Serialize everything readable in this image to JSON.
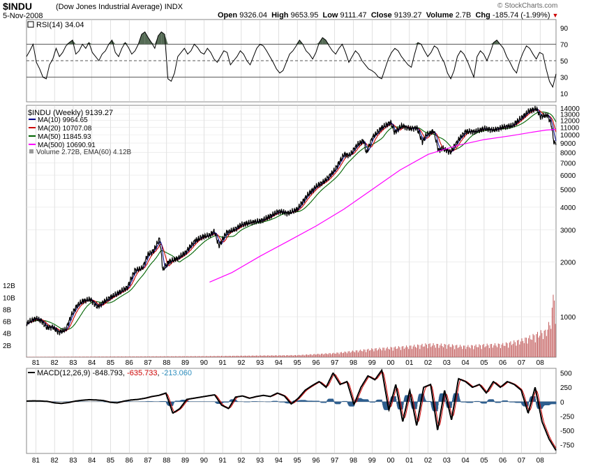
{
  "header": {
    "symbol": "$INDU",
    "name": "(Dow Jones Industrial Average)",
    "exchange": "INDX",
    "date": "5-Nov-2008",
    "open_label": "Open",
    "open": "9326.04",
    "high_label": "High",
    "high": "9653.95",
    "low_label": "Low",
    "low": "9111.47",
    "close_label": "Close",
    "close": "9139.27",
    "volume_label": "Volume",
    "volume": "2.7B",
    "chg_label": "Chg",
    "chg": "-185.74 (-1.99%)",
    "watermark": "© StockCharts.com"
  },
  "colors": {
    "price": "#000000",
    "ma10": "#00008b",
    "ma20": "#cc0000",
    "ma50": "#006400",
    "ma500": "#ff00ff",
    "volume": "#c25a5a",
    "histogram": "#2f5f8f",
    "grid": "#cccccc",
    "rsi_fill": "#556b55"
  },
  "chart_data": [
    {
      "type": "line",
      "title": "RSI(14) 34.04",
      "ylim": [
        0,
        100
      ],
      "yticks": [
        10,
        30,
        50,
        70,
        90
      ],
      "reference_lines": [
        30,
        50,
        70
      ],
      "x_start": 1980.5,
      "x_end": 2008.85,
      "values": [
        55,
        62,
        70,
        48,
        40,
        30,
        28,
        45,
        52,
        65,
        55,
        60,
        68,
        72,
        75,
        58,
        62,
        70,
        65,
        72,
        60,
        55,
        50,
        58,
        62,
        70,
        75,
        60,
        55,
        65,
        72,
        66,
        58,
        62,
        70,
        82,
        85,
        78,
        72,
        65,
        80,
        85,
        82,
        28,
        25,
        35,
        55,
        60,
        65,
        58,
        62,
        70,
        66,
        60,
        58,
        65,
        60,
        52,
        48,
        55,
        62,
        60,
        45,
        50,
        55,
        62,
        58,
        50,
        45,
        55,
        65,
        70,
        68,
        62,
        55,
        48,
        40,
        35,
        38,
        48,
        58,
        62,
        68,
        75,
        70,
        62,
        58,
        52,
        60,
        72,
        78,
        75,
        68,
        62,
        58,
        65,
        70,
        60,
        48,
        55,
        62,
        58,
        50,
        45,
        40,
        38,
        35,
        30,
        28,
        40,
        52,
        60,
        65,
        62,
        55,
        50,
        45,
        42,
        58,
        72,
        70,
        62,
        55,
        60,
        68,
        65,
        55,
        48,
        35,
        28,
        38,
        55,
        62,
        58,
        50,
        40,
        30,
        55,
        62,
        58,
        50,
        60,
        72,
        75,
        70,
        65,
        55,
        48,
        40,
        35,
        50,
        60,
        68,
        65,
        58,
        52,
        60,
        58,
        40,
        25,
        18,
        34.04
      ]
    },
    {
      "type": "line",
      "title": "$INDU (Weekly) 9139.27",
      "scale": "log",
      "ylim": [
        600,
        14500
      ],
      "yticks": [
        1000,
        2000,
        3000,
        4000,
        5000,
        6000,
        7000,
        8000,
        9000,
        10000,
        11000,
        12000,
        13000,
        14000
      ],
      "x_start": 1980.5,
      "x_end": 2008.85,
      "xticks": [
        "81",
        "82",
        "83",
        "84",
        "85",
        "86",
        "87",
        "88",
        "89",
        "90",
        "91",
        "92",
        "93",
        "94",
        "95",
        "96",
        "97",
        "98",
        "99",
        "00",
        "01",
        "02",
        "03",
        "04",
        "05",
        "06",
        "07",
        "08"
      ],
      "xtick_years": [
        1981,
        1982,
        1983,
        1984,
        1985,
        1986,
        1987,
        1988,
        1989,
        1990,
        1991,
        1992,
        1993,
        1994,
        1995,
        1996,
        1997,
        1998,
        1999,
        2000,
        2001,
        2002,
        2003,
        2004,
        2005,
        2006,
        2007,
        2008
      ],
      "price_series": {
        "x": [
          1980.5,
          1980.8,
          1981.0,
          1981.3,
          1981.6,
          1981.9,
          1982.2,
          1982.6,
          1982.9,
          1983.2,
          1983.5,
          1983.9,
          1984.3,
          1984.6,
          1985.0,
          1985.4,
          1985.9,
          1986.3,
          1986.7,
          1987.0,
          1987.3,
          1987.63,
          1987.8,
          1988.1,
          1988.6,
          1989.0,
          1989.5,
          1989.9,
          1990.3,
          1990.55,
          1990.8,
          1991.2,
          1991.6,
          1992.0,
          1992.5,
          1993.0,
          1993.5,
          1994.0,
          1994.5,
          1995.0,
          1995.5,
          1996.0,
          1996.5,
          1997.0,
          1997.5,
          1997.8,
          1998.2,
          1998.55,
          1998.7,
          1999.0,
          1999.5,
          2000.0,
          2000.2,
          2000.6,
          2001.0,
          2001.4,
          2001.7,
          2001.9,
          2002.3,
          2002.55,
          2002.8,
          2003.2,
          2003.6,
          2004.0,
          2004.5,
          2005.0,
          2005.5,
          2006.0,
          2006.5,
          2007.0,
          2007.4,
          2007.8,
          2008.0,
          2008.4,
          2008.6,
          2008.75,
          2008.85
        ],
        "y": [
          920,
          960,
          980,
          950,
          870,
          880,
          820,
          850,
          1020,
          1150,
          1220,
          1250,
          1130,
          1200,
          1280,
          1350,
          1450,
          1800,
          1850,
          2200,
          2300,
          2700,
          1800,
          2000,
          2100,
          2250,
          2600,
          2750,
          2800,
          2950,
          2450,
          2900,
          3000,
          3200,
          3300,
          3350,
          3550,
          3800,
          3700,
          3900,
          4600,
          5200,
          5600,
          6400,
          7800,
          7700,
          8800,
          9300,
          7900,
          9600,
          10900,
          11700,
          10300,
          11200,
          10800,
          10900,
          9100,
          10000,
          10500,
          8200,
          8400,
          8000,
          9300,
          10400,
          10400,
          10800,
          10600,
          11000,
          11200,
          12400,
          13500,
          13900,
          12600,
          12800,
          11400,
          8900,
          9139.27
        ]
      },
      "series": [
        {
          "name": "MA(10)",
          "value": "9964.65"
        },
        {
          "name": "MA(20)",
          "value": "10707.08"
        },
        {
          "name": "MA(50)",
          "value": "11845.93"
        },
        {
          "name": "MA(500)",
          "value": "10690.91"
        }
      ],
      "ma500_series": {
        "x": [
          1990.3,
          1991.5,
          1993.0,
          1994.5,
          1996.0,
          1997.5,
          1999.0,
          2000.5,
          2002.0,
          2003.5,
          2005.0,
          2006.5,
          2007.5,
          2008.3,
          2008.85
        ],
        "y": [
          1550,
          1750,
          2150,
          2600,
          3150,
          3900,
          5000,
          6400,
          7800,
          8700,
          9400,
          9900,
          10300,
          10600,
          10690.91
        ]
      }
    },
    {
      "type": "bar",
      "title": "Volume 2.72B, EMA(60) 4.12B",
      "ylim": [
        0,
        14
      ],
      "yticks_labels": [
        "2B",
        "4B",
        "6B",
        "8B",
        "10B",
        "12B"
      ],
      "yticks": [
        2,
        4,
        6,
        8,
        10,
        12
      ],
      "x": [
        1980.5,
        1985,
        1990,
        1995,
        1997,
        1998,
        1999,
        2000,
        2001,
        2002,
        2003,
        2004,
        2005,
        2006,
        2007,
        2007.5,
        2008,
        2008.3,
        2008.6,
        2008.75,
        2008.85
      ],
      "values": [
        0.05,
        0.1,
        0.15,
        0.3,
        0.6,
        0.9,
        1.2,
        1.4,
        1.6,
        1.9,
        1.8,
        1.6,
        1.8,
        1.9,
        2.5,
        3.0,
        3.6,
        3.8,
        5.5,
        10.5,
        2.72
      ]
    },
    {
      "type": "line",
      "title": "MACD(12,26,9)",
      "ylim": [
        -900,
        580
      ],
      "yticks": [
        -750,
        -500,
        -250,
        0,
        250,
        500
      ],
      "series": [
        {
          "name": "MACD",
          "value": "-848.793"
        },
        {
          "name": "signal",
          "value": "-635.733"
        },
        {
          "name": "histogram",
          "value": "-213.060"
        }
      ],
      "x_start": 1980.5,
      "x_end": 2008.85,
      "values": [
        10,
        15,
        12,
        5,
        -20,
        -30,
        -15,
        10,
        25,
        35,
        30,
        20,
        -10,
        -20,
        10,
        30,
        40,
        60,
        90,
        110,
        150,
        -200,
        -120,
        40,
        60,
        80,
        100,
        120,
        -60,
        -120,
        80,
        100,
        60,
        90,
        110,
        90,
        150,
        100,
        -40,
        60,
        200,
        280,
        350,
        250,
        500,
        300,
        350,
        -50,
        250,
        450,
        380,
        550,
        -150,
        300,
        -350,
        200,
        -420,
        250,
        300,
        -500,
        200,
        -320,
        400,
        350,
        250,
        300,
        150,
        350,
        250,
        350,
        300,
        200,
        -200,
        250,
        -350,
        -650,
        -848.793
      ]
    }
  ]
}
